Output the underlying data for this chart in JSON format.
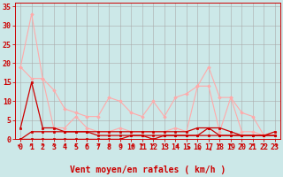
{
  "background_color": "#cce8e8",
  "grid_color": "#aaaaaa",
  "xlabel": "Vent moyen/en rafales ( km/h )",
  "xlabel_color": "#cc0000",
  "xlabel_fontsize": 7,
  "tick_color": "#cc0000",
  "tick_fontsize": 6,
  "xlim": [
    -0.5,
    23.5
  ],
  "ylim": [
    0,
    36
  ],
  "yticks": [
    0,
    5,
    10,
    15,
    20,
    25,
    30,
    35
  ],
  "xticks": [
    0,
    1,
    2,
    3,
    4,
    5,
    6,
    7,
    8,
    9,
    10,
    11,
    12,
    13,
    14,
    15,
    16,
    17,
    18,
    19,
    20,
    21,
    22,
    23
  ],
  "series": [
    {
      "x": [
        0,
        1,
        2,
        3,
        4,
        5,
        6,
        7,
        8,
        9,
        10,
        11,
        12,
        13,
        14,
        15,
        16,
        17,
        18,
        19,
        20,
        21,
        22,
        23
      ],
      "y": [
        19,
        33,
        16,
        13,
        8,
        7,
        6,
        6,
        11,
        10,
        7,
        6,
        10,
        6,
        11,
        12,
        14,
        19,
        11,
        11,
        7,
        6,
        1,
        1
      ],
      "color": "#ffaaaa",
      "linewidth": 0.8,
      "marker": "D",
      "markersize": 1.8,
      "zorder": 2
    },
    {
      "x": [
        0,
        1,
        2,
        3,
        4,
        5,
        6,
        7,
        8,
        9,
        10,
        11,
        12,
        13,
        14,
        15,
        16,
        17,
        18,
        19,
        20,
        21,
        22,
        23
      ],
      "y": [
        19,
        16,
        16,
        3,
        3,
        6,
        3,
        2,
        2,
        3,
        2,
        2,
        2,
        2,
        3,
        2,
        14,
        14,
        2,
        11,
        2,
        2,
        1,
        2
      ],
      "color": "#ffaaaa",
      "linewidth": 0.8,
      "marker": "D",
      "markersize": 1.8,
      "zorder": 2
    },
    {
      "x": [
        0,
        1,
        2,
        3,
        4,
        5,
        6,
        7,
        8,
        9,
        10,
        11,
        12,
        13,
        14,
        15,
        16,
        17,
        18,
        19,
        20,
        21,
        22,
        23
      ],
      "y": [
        3,
        15,
        3,
        3,
        2,
        2,
        2,
        2,
        2,
        2,
        2,
        2,
        2,
        2,
        2,
        2,
        3,
        3,
        3,
        2,
        1,
        1,
        1,
        2
      ],
      "color": "#cc0000",
      "linewidth": 0.9,
      "marker": "s",
      "markersize": 1.8,
      "zorder": 3
    },
    {
      "x": [
        0,
        1,
        2,
        3,
        4,
        5,
        6,
        7,
        8,
        9,
        10,
        11,
        12,
        13,
        14,
        15,
        16,
        17,
        18,
        19,
        20,
        21,
        22,
        23
      ],
      "y": [
        0,
        2,
        2,
        2,
        2,
        2,
        2,
        1,
        1,
        1,
        1,
        1,
        1,
        1,
        1,
        1,
        1,
        3,
        1,
        1,
        1,
        1,
        1,
        1
      ],
      "color": "#cc0000",
      "linewidth": 0.9,
      "marker": "s",
      "markersize": 1.8,
      "zorder": 3
    },
    {
      "x": [
        0,
        1,
        2,
        3,
        4,
        5,
        6,
        7,
        8,
        9,
        10,
        11,
        12,
        13,
        14,
        15,
        16,
        17,
        18,
        19,
        20,
        21,
        22,
        23
      ],
      "y": [
        0,
        0,
        0,
        0,
        0,
        0,
        0,
        0,
        0,
        0,
        1,
        1,
        0,
        1,
        1,
        1,
        1,
        1,
        1,
        1,
        1,
        1,
        1,
        1
      ],
      "color": "#cc0000",
      "linewidth": 0.9,
      "marker": "s",
      "markersize": 1.8,
      "zorder": 3
    }
  ],
  "arrow_angles": [
    225,
    200,
    180,
    180,
    180,
    180,
    180,
    170,
    160,
    150,
    135,
    180,
    180,
    150,
    130,
    90,
    60,
    50,
    180,
    180,
    180,
    180,
    180,
    160
  ]
}
